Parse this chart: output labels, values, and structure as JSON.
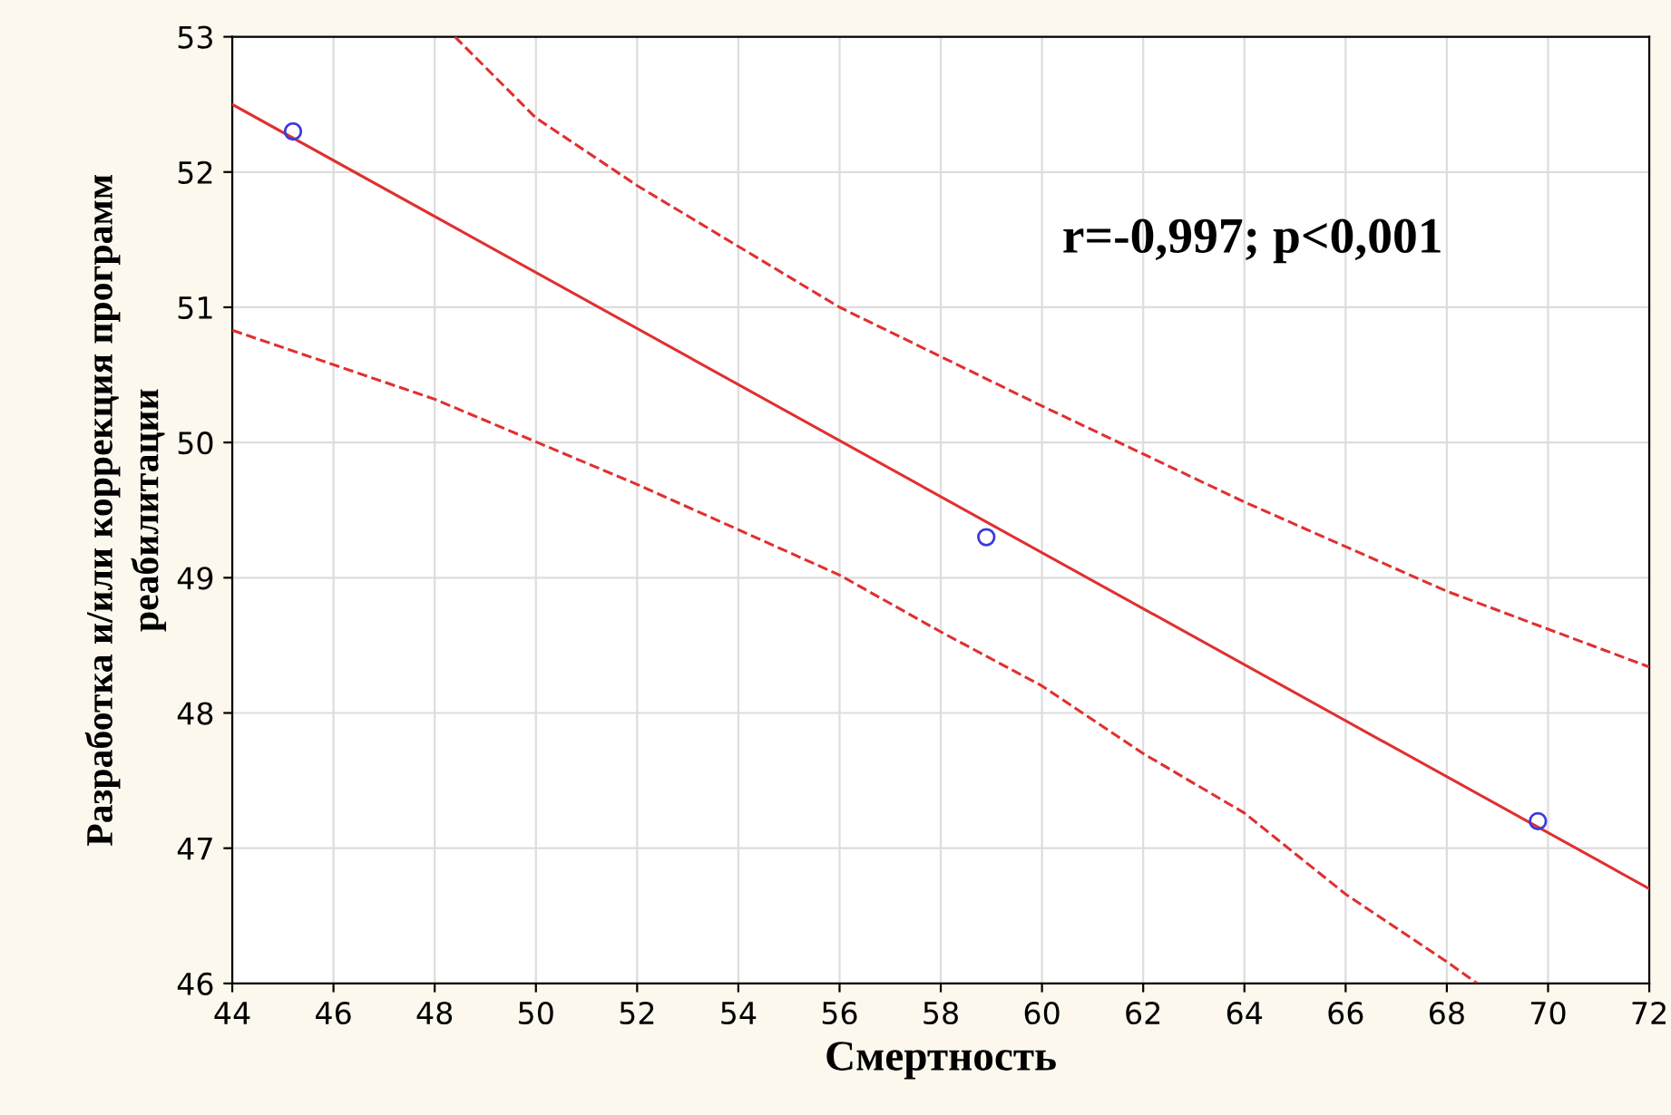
{
  "chart_data": {
    "type": "scatter",
    "xlabel": "Смертность",
    "ylabel": "Разработка и/или коррекция программ\nреабилитации",
    "xlim": [
      44,
      72
    ],
    "ylim": [
      46,
      53
    ],
    "xticks": [
      44,
      46,
      48,
      50,
      52,
      54,
      56,
      58,
      60,
      62,
      64,
      66,
      68,
      70,
      72
    ],
    "yticks": [
      46,
      47,
      48,
      49,
      50,
      51,
      52,
      53
    ],
    "grid": true,
    "series": [
      {
        "marker": "circle",
        "color": "#3a3adc",
        "x": [
          45.2,
          58.9,
          69.8
        ],
        "values": [
          52.3,
          49.3,
          47.2
        ]
      },
      {
        "type": "line",
        "color": "#e03030",
        "line_style": "solid",
        "marker": "none",
        "x": [
          44,
          72
        ],
        "values": [
          52.5,
          46.7
        ]
      },
      {
        "type": "line",
        "color": "#e03030",
        "line_style": "dashed",
        "marker": "none",
        "x": [
          48.4,
          50,
          52,
          56,
          60,
          64,
          68,
          72
        ],
        "values": [
          53,
          52.4,
          51.9,
          51.0,
          50.27,
          49.56,
          48.9,
          48.34
        ]
      },
      {
        "type": "line",
        "color": "#e03030",
        "line_style": "dashed",
        "marker": "none",
        "x": [
          44,
          48,
          52,
          56,
          58,
          60,
          62,
          64,
          66,
          68,
          68.6
        ],
        "values": [
          50.83,
          50.32,
          49.69,
          49.02,
          48.6,
          48.2,
          47.7,
          47.26,
          46.66,
          46.16,
          46
        ]
      }
    ],
    "annotations": [
      "r=-0,997; p<0,001"
    ]
  }
}
